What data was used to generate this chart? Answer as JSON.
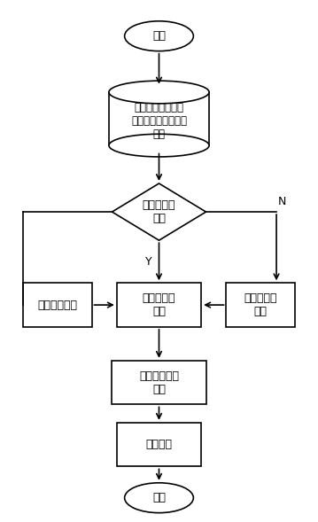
{
  "bg_color": "#ffffff",
  "line_color": "#000000",
  "text_color": "#000000",
  "font_size": 9,
  "figsize": [
    3.59,
    5.89
  ],
  "dpi": 100,
  "start_label": "开始",
  "end_label": "结束",
  "database_label": "区域儿科门诊人次\n（日、周、月）时间\n序列",
  "diamond_label": "序列平稳性\n检验",
  "param_label": "参数估计与\n检验",
  "event_label": "事件变量识别",
  "stable_label": "序列平稳性\n处理",
  "optimal_label": "最优序列长度\n识别",
  "dynamic_label": "动态预测",
  "y_label": "Y",
  "n_label": "N"
}
